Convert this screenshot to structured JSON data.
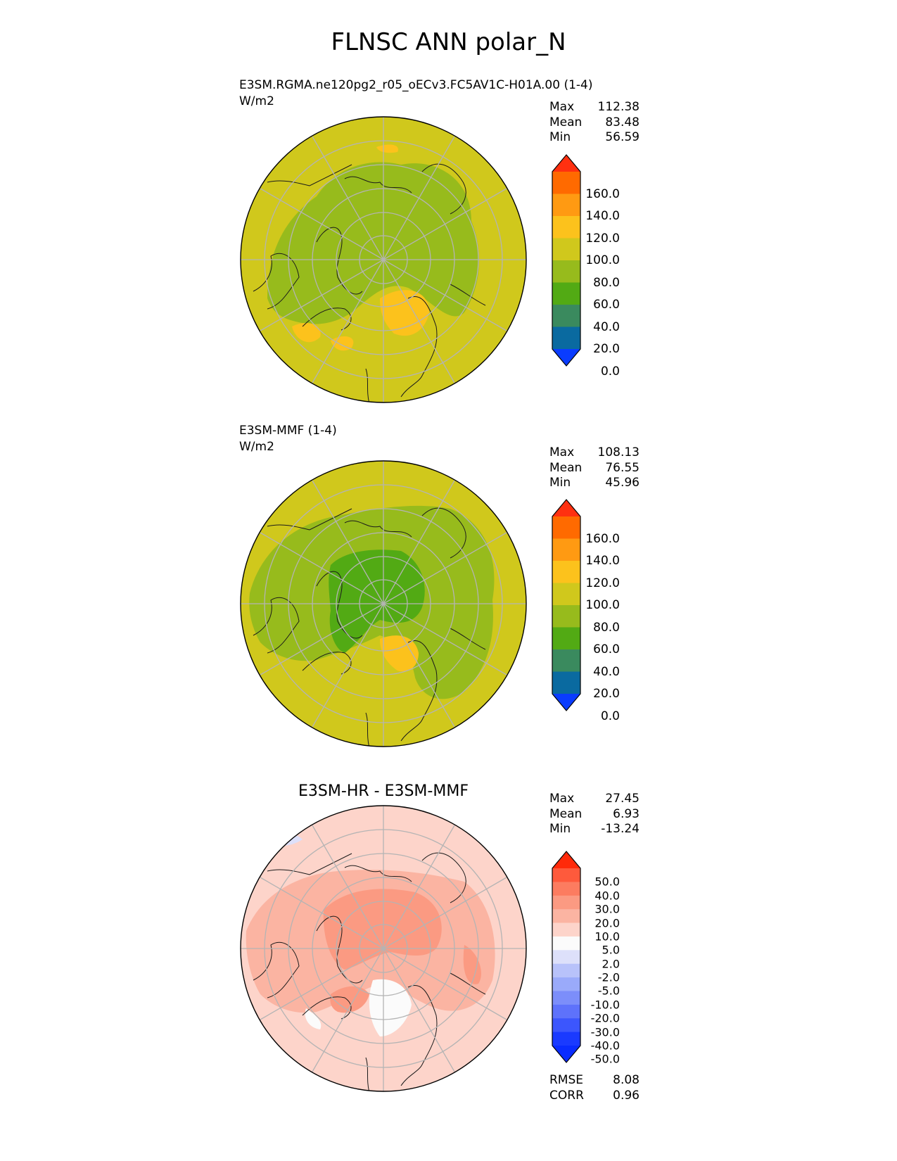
{
  "title": "FLNSC ANN polar_N",
  "panels": [
    {
      "label": "E3SM.RGMA.ne120pg2_r05_oECv3.FC5AV1C-H01A.00 (1-4)",
      "units": "W/m2",
      "stats": [
        {
          "name": "Max",
          "value": "112.38"
        },
        {
          "name": "Mean",
          "value": "83.48"
        },
        {
          "name": "Min",
          "value": "56.59"
        }
      ]
    },
    {
      "label": "E3SM-MMF (1-4)",
      "units": "W/m2",
      "stats": [
        {
          "name": "Max",
          "value": "108.13"
        },
        {
          "name": "Mean",
          "value": "76.55"
        },
        {
          "name": "Min",
          "value": "45.96"
        }
      ]
    },
    {
      "label": "E3SM-HR - E3SM-MMF",
      "stats": [
        {
          "name": "Max",
          "value": "27.45"
        },
        {
          "name": "Mean",
          "value": "6.93"
        },
        {
          "name": "Min",
          "value": "-13.24"
        }
      ],
      "metrics": [
        {
          "name": "RMSE",
          "value": "8.08"
        },
        {
          "name": "CORR",
          "value": "0.96"
        }
      ]
    }
  ],
  "chart_data": [
    {
      "type": "heatmap",
      "projection": "north polar stereographic",
      "title": "E3SM.RGMA.ne120pg2_r05_oECv3.FC5AV1C-H01A.00 (1-4)",
      "units": "W/m2",
      "field_range": [
        56.59,
        112.38
      ],
      "field_mean": 83.48,
      "colorbar": {
        "ticks": [
          "160.0",
          "140.0",
          "120.0",
          "100.0",
          "80.0",
          "60.0",
          "40.0",
          "20.0",
          "0.0"
        ],
        "colors": [
          "#ff3010",
          "#ff6a00",
          "#ff9a12",
          "#fcc21c",
          "#d0c81c",
          "#97bb1c",
          "#52aa14",
          "#3a8a5e",
          "#0a6aa0",
          "#0a3cff"
        ],
        "extend": "both"
      },
      "dominant_colors": {
        "ocean_midlat": "#d0c81c",
        "arctic": "#97bb1c",
        "warm_patches": "#fcc21c"
      }
    },
    {
      "type": "heatmap",
      "projection": "north polar stereographic",
      "title": "E3SM-MMF (1-4)",
      "units": "W/m2",
      "field_range": [
        45.96,
        108.13
      ],
      "field_mean": 76.55,
      "colorbar": {
        "ticks": [
          "160.0",
          "140.0",
          "120.0",
          "100.0",
          "80.0",
          "60.0",
          "40.0",
          "20.0",
          "0.0"
        ],
        "colors": [
          "#ff3010",
          "#ff6a00",
          "#ff9a12",
          "#fcc21c",
          "#d0c81c",
          "#97bb1c",
          "#52aa14",
          "#3a8a5e",
          "#0a6aa0",
          "#0a3cff"
        ],
        "extend": "both"
      },
      "dominant_colors": {
        "ocean_midlat": "#d0c81c",
        "land": "#97bb1c",
        "arctic_core": "#52aa14"
      }
    },
    {
      "type": "heatmap",
      "projection": "north polar stereographic",
      "title": "E3SM-HR - E3SM-MMF",
      "field_range": [
        -13.24,
        27.45
      ],
      "field_mean": 6.93,
      "rmse": 8.08,
      "corr": 0.96,
      "colorbar": {
        "ticks": [
          "50.0",
          "40.0",
          "30.0",
          "20.0",
          "10.0",
          "5.0",
          "2.0",
          "-2.0",
          "-5.0",
          "-10.0",
          "-20.0",
          "-30.0",
          "-40.0",
          "-50.0"
        ],
        "colors": [
          "#ff2a0a",
          "#fe5a3c",
          "#fc7c60",
          "#fb9a82",
          "#fbb4a2",
          "#fdd4ca",
          "#fbfbfb",
          "#dde0fa",
          "#b8c2fa",
          "#9aaafa",
          "#7c8efa",
          "#5e72fb",
          "#3c56fd",
          "#1a3aff",
          "#0a2cff"
        ],
        "extend": "both"
      },
      "dominant_colors": {
        "background": "#fdd4ca",
        "positive_core": "#fb9a82",
        "near_zero": "#fbfbfb"
      }
    }
  ]
}
